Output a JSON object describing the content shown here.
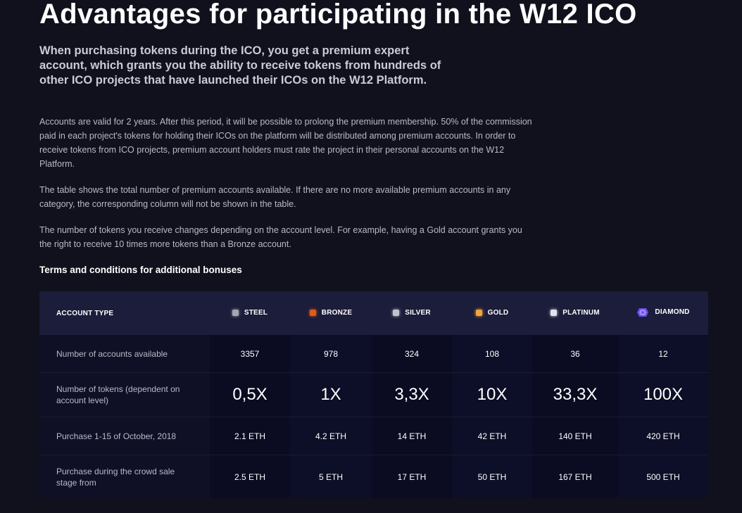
{
  "title": "Advantages for participating in the W12 ICO",
  "lead": "When purchasing tokens during the ICO, you get a premium expert account, which grants you the ability to receive tokens from hundreds of other ICO projects that have launched their ICOs on the W12 Platform.",
  "paragraphs": [
    "Accounts are valid for 2 years. After this period, it will be possible to prolong the premium membership. 50% of the commission paid in each project's tokens for holding their ICOs on the platform will be distributed among premium accounts. In order to receive tokens from ICO projects, premium account holders must rate the project in their personal accounts on the W12 Platform.",
    "The table shows the total number of premium accounts available. If there are no more available premium accounts in any category, the corresponding column will not be shown in the table.",
    "The number of tokens you receive changes depending on the account level. For example, having a Gold account grants you the right to receive 10 times more tokens than a Bronze account."
  ],
  "bonus_title": "Terms and conditions for additional bonuses",
  "table": {
    "header_label": "ACCOUNT TYPE",
    "columns": [
      {
        "name": "STEEL",
        "color": "#a4a7b0",
        "icon": "steel-swatch-icon"
      },
      {
        "name": "BRONZE",
        "color": "#e05a1a",
        "icon": "bronze-swatch-icon"
      },
      {
        "name": "SILVER",
        "color": "#bfc4ca",
        "icon": "silver-swatch-icon"
      },
      {
        "name": "GOLD",
        "color": "#f3a53c",
        "icon": "gold-swatch-icon"
      },
      {
        "name": "PLATINUM",
        "color": "#dfe4ea",
        "icon": "platinum-swatch-icon"
      },
      {
        "name": "DIAMOND",
        "color": "#6b4cf0",
        "icon": "diamond-gem-icon"
      }
    ],
    "rows": [
      {
        "label": "Number of accounts available",
        "values": [
          "3357",
          "978",
          "324",
          "108",
          "36",
          "12"
        ]
      },
      {
        "label": "Number of tokens (dependent on account level)",
        "values": [
          "0,5X",
          "1X",
          "3,3X",
          "10X",
          "33,3X",
          "100X"
        ]
      },
      {
        "label": "Purchase 1-15 of October, 2018",
        "values": [
          "2.1 ETH",
          "4.2 ETH",
          "14 ETH",
          "42 ETH",
          "140 ETH",
          "420 ETH"
        ]
      },
      {
        "label": "Purchase during the crowd sale stage from",
        "values": [
          "2.5 ETH",
          "5 ETH",
          "17 ETH",
          "50 ETH",
          "167 ETH",
          "500 ETH"
        ]
      }
    ]
  }
}
